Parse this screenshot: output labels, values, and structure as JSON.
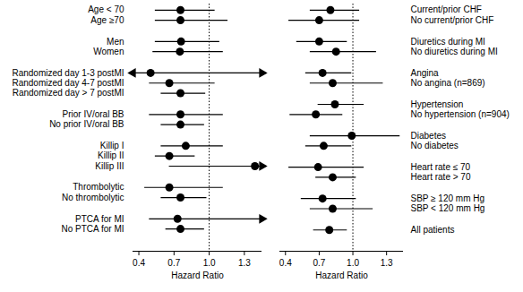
{
  "chart_data": [
    {
      "type": "forest",
      "x_label": "Hazard Ratio",
      "xlim": [
        0.35,
        1.45
      ],
      "xticks": [
        0.4,
        0.7,
        {
          "value": 1,
          "label": "1.0"
        },
        1.3
      ],
      "reference_line": 1,
      "groups": [
        {
          "categories": [
            "Age < 70",
            "Age ≥70"
          ],
          "values": [
            0.755,
            0.755
          ],
          "ci_low": [
            0.54,
            0.54
          ],
          "ci_high": [
            1.05,
            1.16
          ]
        },
        {
          "categories": [
            "Men",
            "Women"
          ],
          "values": [
            0.76,
            0.75
          ],
          "ci_low": [
            0.54,
            0.52
          ],
          "ci_high": [
            1.09,
            1.12
          ]
        },
        {
          "categories": [
            "Randomized day 1-3 postMI",
            "Randomized day 4-7 postMI",
            "Randomized day > 7 postMI"
          ],
          "values": [
            0.5,
            0.66,
            0.755
          ],
          "ci_low": [
            0.3,
            0.49,
            0.59
          ],
          "ci_high": [
            1.6,
            1.05,
            0.97
          ]
        },
        {
          "categories": [
            "Prior IV/oral BB",
            "No prior IV/oral BB"
          ],
          "values": [
            0.755,
            0.755
          ],
          "ci_low": [
            0.49,
            0.59
          ],
          "ci_high": [
            1.12,
            0.96
          ]
        },
        {
          "categories": [
            "Killip I",
            "Killip II",
            "Killip III"
          ],
          "values": [
            0.8,
            0.66,
            1.39
          ],
          "ci_low": [
            0.59,
            0.54,
            0.66
          ],
          "ci_high": [
            1.12,
            0.88,
            1.6
          ]
        },
        {
          "categories": [
            "Thrombolytic",
            "No thrombolytic"
          ],
          "values": [
            0.66,
            0.755
          ],
          "ci_low": [
            0.45,
            0.59
          ],
          "ci_high": [
            1.12,
            0.98
          ]
        },
        {
          "categories": [
            "PTCA for MI",
            "No PTCA for MI"
          ],
          "values": [
            0.73,
            0.755
          ],
          "ci_low": [
            0.49,
            0.63
          ],
          "ci_high": [
            1.6,
            0.96
          ]
        }
      ]
    },
    {
      "type": "forest",
      "x_label": "Hazard Ratio",
      "xlim": [
        0.35,
        1.45
      ],
      "xticks": [
        0.4,
        0.7,
        {
          "value": 1,
          "label": "1.0"
        },
        1.3
      ],
      "reference_line": 1,
      "groups": [
        {
          "categories": [
            "Current/prior CHF",
            "No current/prior CHF"
          ],
          "values": [
            0.8,
            0.7
          ],
          "ci_low": [
            0.62,
            0.43
          ],
          "ci_high": [
            1.06,
            1.06
          ]
        },
        {
          "categories": [
            "Diuretics during MI",
            "No diuretics during MI"
          ],
          "values": [
            0.7,
            0.85
          ],
          "ci_low": [
            0.5,
            0.62
          ],
          "ci_high": [
            0.95,
            1.21
          ]
        },
        {
          "categories": [
            "Angina",
            "No angina (n=869)"
          ],
          "values": [
            0.73,
            0.82
          ],
          "ci_low": [
            0.58,
            0.62
          ],
          "ci_high": [
            0.99,
            1.27
          ]
        },
        {
          "categories": [
            "Hypertension",
            "No hypertension (n=904)"
          ],
          "values": [
            0.84,
            0.67
          ],
          "ci_low": [
            0.69,
            0.44
          ],
          "ci_high": [
            1.1,
            0.91
          ]
        },
        {
          "categories": [
            "Diabetes",
            "No diabetes"
          ],
          "values": [
            0.99,
            0.74
          ],
          "ci_low": [
            0.62,
            0.58
          ],
          "ci_high": [
            1.42,
            0.99
          ]
        },
        {
          "categories": [
            "Heart rate ≤ 70",
            "Heart rate > 70"
          ],
          "values": [
            0.69,
            0.82
          ],
          "ci_low": [
            0.43,
            0.67
          ],
          "ci_high": [
            1.1,
            1.03
          ]
        },
        {
          "categories": [
            "SBP ≥ 120 mm Hg",
            "SBP < 120 mm Hg"
          ],
          "values": [
            0.73,
            0.82
          ],
          "ci_low": [
            0.54,
            0.62
          ],
          "ci_high": [
            1.03,
            1.18
          ]
        },
        {
          "categories": [
            "All patients"
          ],
          "values": [
            0.79
          ],
          "ci_low": [
            0.65
          ],
          "ci_high": [
            0.95
          ]
        }
      ]
    }
  ]
}
